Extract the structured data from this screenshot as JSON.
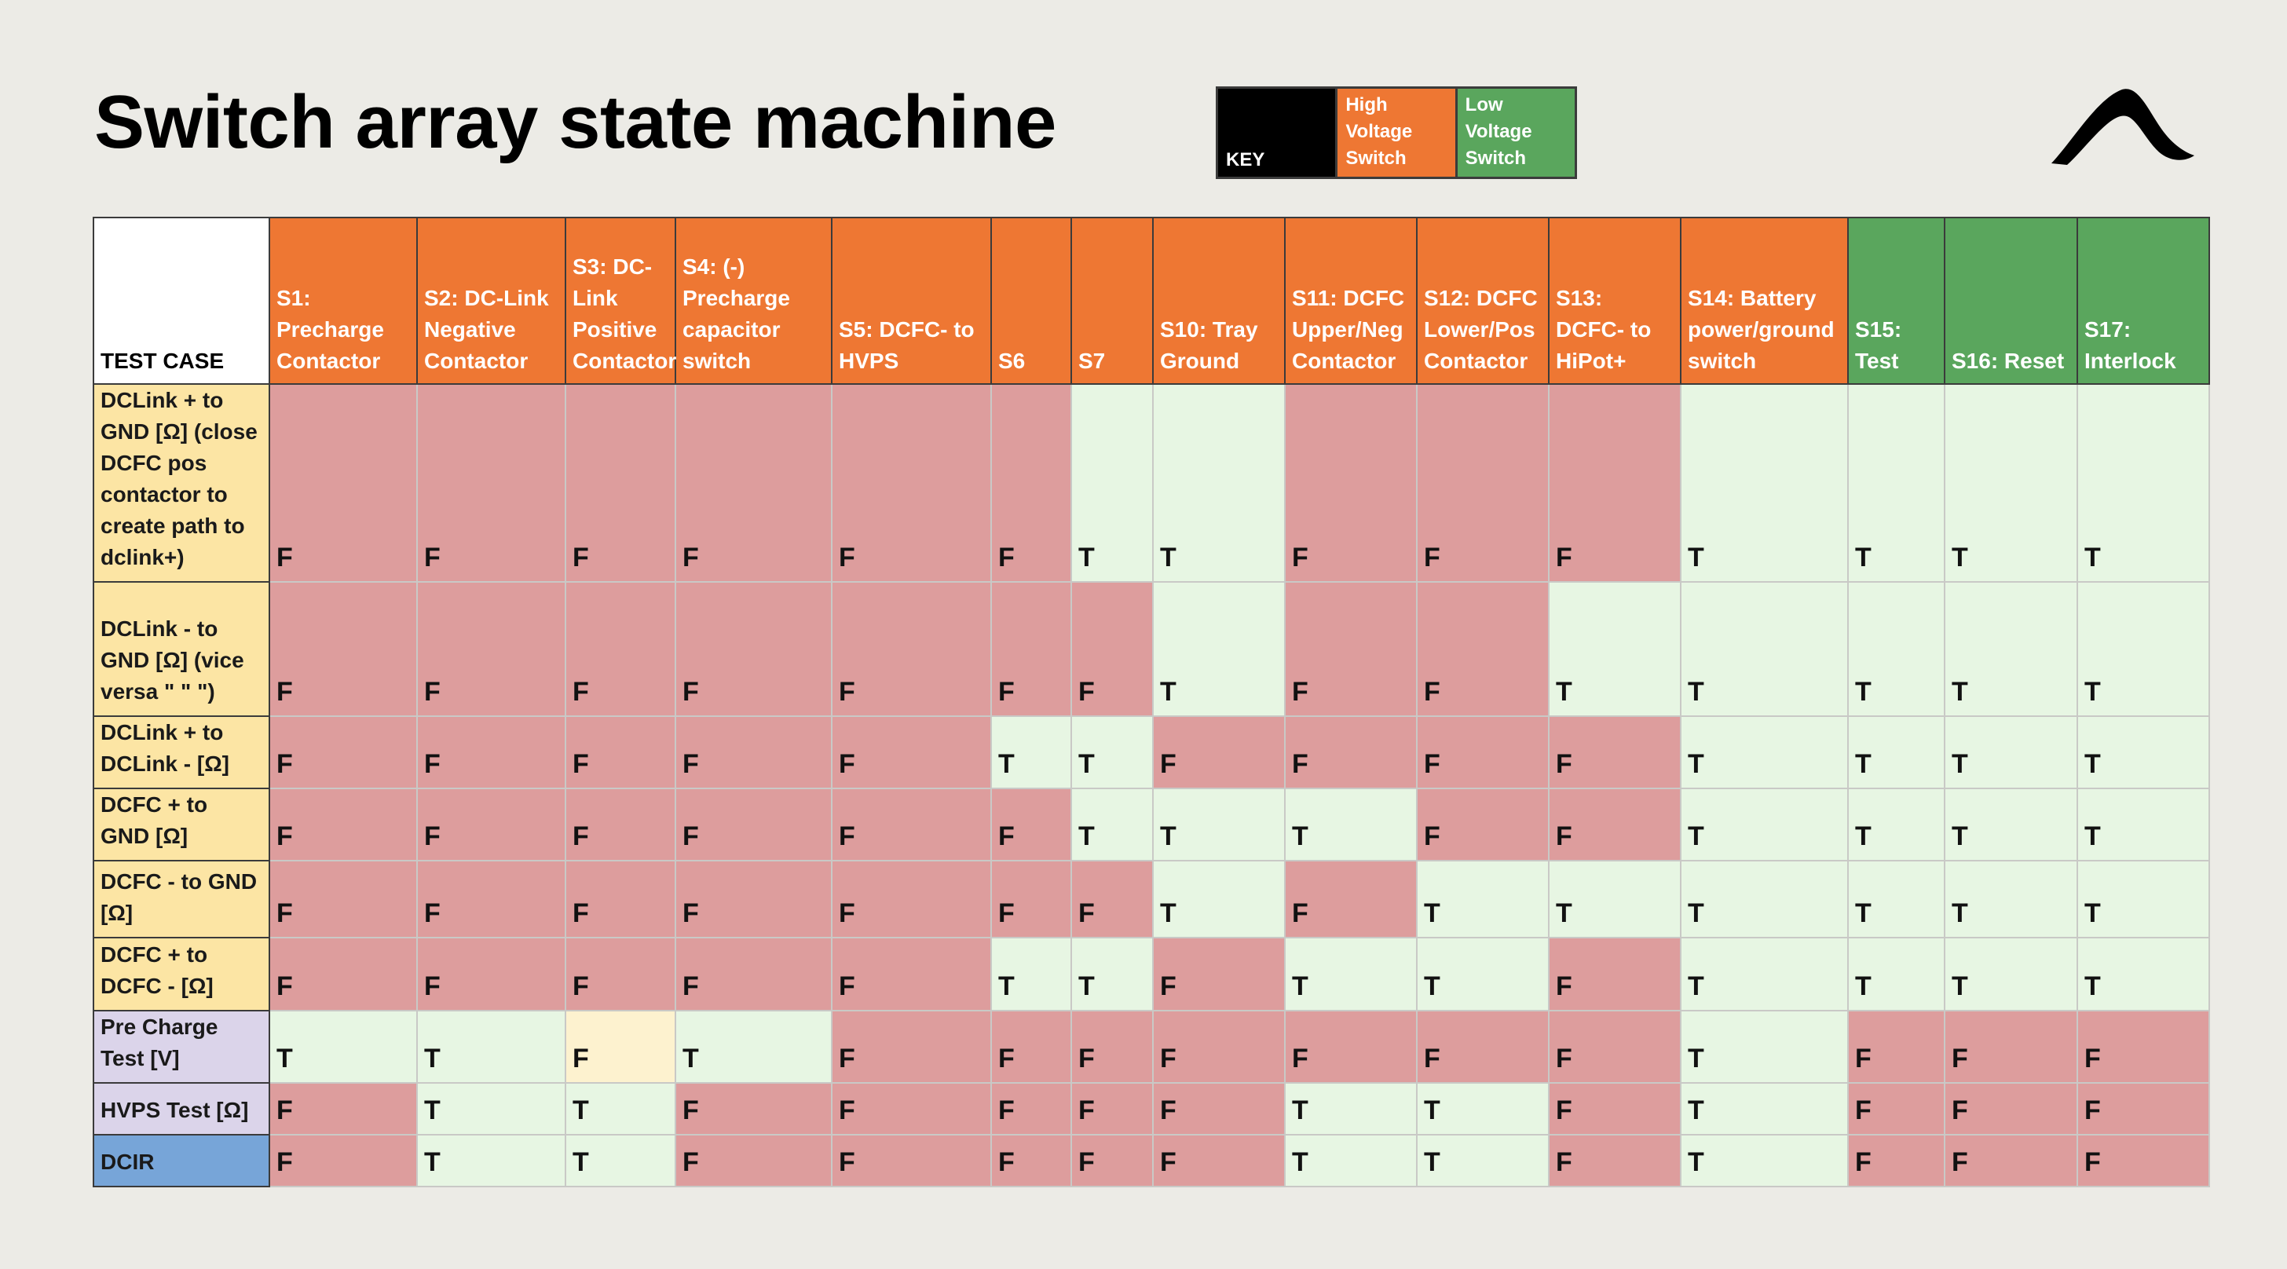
{
  "title": "Switch array state machine",
  "key": {
    "label": "KEY",
    "high_voltage": "High Voltage Switch",
    "low_voltage": "Low Voltage Switch"
  },
  "table": {
    "corner": "TEST CASE",
    "columns": [
      {
        "label": "S1: Precharge Contactor",
        "type": "high"
      },
      {
        "label": "S2: DC-Link Negative Contactor",
        "type": "high"
      },
      {
        "label": "S3: DC-Link Positive Contactor",
        "type": "high"
      },
      {
        "label": "S4: (-) Precharge capacitor switch",
        "type": "high"
      },
      {
        "label": "S5: DCFC- to HVPS",
        "type": "high"
      },
      {
        "label": "S6",
        "type": "high"
      },
      {
        "label": "S7",
        "type": "high"
      },
      {
        "label": "S10: Tray Ground",
        "type": "high"
      },
      {
        "label": "S11: DCFC Upper/Neg Contactor",
        "type": "high"
      },
      {
        "label": "S12: DCFC Lower/Pos Contactor",
        "type": "high"
      },
      {
        "label": "S13: DCFC- to HiPot+",
        "type": "high"
      },
      {
        "label": "S14: Battery power/ground switch",
        "type": "high"
      },
      {
        "label": "S15: Test",
        "type": "low"
      },
      {
        "label": "S16: Reset",
        "type": "low"
      },
      {
        "label": "S17: Interlock",
        "type": "low"
      }
    ],
    "rows": [
      {
        "label": "DCLink + to GND [Ω] (close DCFC pos contactor to create path to dclink+)",
        "group": "yellow",
        "values": [
          "F",
          "F",
          "F",
          "F",
          "F",
          "F",
          "T",
          "T",
          "F",
          "F",
          "F",
          "T",
          "T",
          "T",
          "T"
        ]
      },
      {
        "label": "DCLink - to GND [Ω] (vice versa \" \" \")",
        "group": "yellow",
        "values": [
          "F",
          "F",
          "F",
          "F",
          "F",
          "F",
          "F",
          "T",
          "F",
          "F",
          "T",
          "T",
          "T",
          "T",
          "T"
        ]
      },
      {
        "label": "DCLink + to DCLink - [Ω]",
        "group": "yellow",
        "values": [
          "F",
          "F",
          "F",
          "F",
          "F",
          "T",
          "T",
          "F",
          "F",
          "F",
          "F",
          "T",
          "T",
          "T",
          "T"
        ]
      },
      {
        "label": "DCFC + to GND [Ω]",
        "group": "yellow",
        "values": [
          "F",
          "F",
          "F",
          "F",
          "F",
          "F",
          "T",
          "T",
          "T",
          "F",
          "F",
          "T",
          "T",
          "T",
          "T"
        ]
      },
      {
        "label": "DCFC - to GND [Ω]",
        "group": "yellow",
        "values": [
          "F",
          "F",
          "F",
          "F",
          "F",
          "F",
          "F",
          "T",
          "F",
          "T",
          "T",
          "T",
          "T",
          "T",
          "T"
        ]
      },
      {
        "label": "DCFC + to DCFC - [Ω]",
        "group": "yellow",
        "values": [
          "F",
          "F",
          "F",
          "F",
          "F",
          "T",
          "T",
          "F",
          "T",
          "T",
          "F",
          "T",
          "T",
          "T",
          "T"
        ]
      },
      {
        "label": "Pre Charge Test [V]",
        "group": "lavender",
        "values": [
          "T",
          "T",
          "F",
          "T",
          "F",
          "F",
          "F",
          "F",
          "F",
          "F",
          "F",
          "T",
          "F",
          "F",
          "F"
        ],
        "highlight": [
          2
        ]
      },
      {
        "label": "HVPS Test [Ω]",
        "group": "lavender",
        "values": [
          "F",
          "T",
          "T",
          "F",
          "F",
          "F",
          "F",
          "F",
          "T",
          "T",
          "F",
          "T",
          "F",
          "F",
          "F"
        ]
      },
      {
        "label": "DCIR",
        "group": "blue",
        "values": [
          "F",
          "T",
          "T",
          "F",
          "F",
          "F",
          "F",
          "F",
          "T",
          "T",
          "F",
          "T",
          "F",
          "F",
          "F"
        ]
      }
    ]
  },
  "colors": {
    "background": "#ecebe6",
    "high_voltage": "#ee7733",
    "low_voltage": "#5aa65d",
    "false_cell": "#dd9d9d",
    "true_cell": "#e7f6e3",
    "highlight_cell": "#fdf2cf",
    "row_yellow": "#fce5a4",
    "row_lavender": "#dbd4ea",
    "row_blue": "#77a5d8"
  },
  "icons": {
    "logo": "wave-logo-icon"
  }
}
